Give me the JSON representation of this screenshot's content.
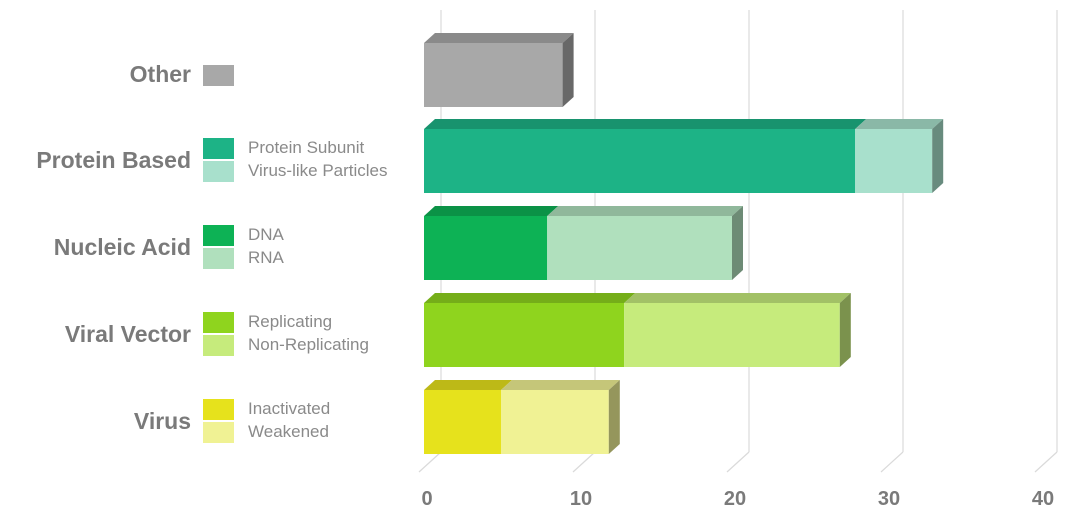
{
  "chart_data": {
    "type": "bar",
    "orientation": "horizontal",
    "stacked": true,
    "style": "3d",
    "categories": [
      "Other",
      "Protein Based",
      "Nucleic Acid",
      "Viral Vector",
      "Virus"
    ],
    "groups": [
      {
        "category": "Other",
        "segments": [
          {
            "name": "",
            "value": 9,
            "color": "#a8a8a8"
          }
        ]
      },
      {
        "category": "Protein Based",
        "segments": [
          {
            "name": "Protein Subunit",
            "value": 28,
            "color": "#1db386"
          },
          {
            "name": "Virus-like Particles",
            "value": 5,
            "color": "#a8e0cc"
          }
        ]
      },
      {
        "category": "Nucleic Acid",
        "segments": [
          {
            "name": "DNA",
            "value": 8,
            "color": "#0db255"
          },
          {
            "name": "RNA",
            "value": 12,
            "color": "#b0e0bd"
          }
        ]
      },
      {
        "category": "Viral Vector",
        "segments": [
          {
            "name": "Replicating",
            "value": 13,
            "color": "#8fd41e"
          },
          {
            "name": "Non-Replicating",
            "value": 14,
            "color": "#c6eb7c"
          }
        ]
      },
      {
        "category": "Virus",
        "segments": [
          {
            "name": "Inactivated",
            "value": 5,
            "color": "#e6e21c"
          },
          {
            "name": "Weakened",
            "value": 7,
            "color": "#f0f294"
          }
        ]
      }
    ],
    "xlim": [
      0,
      40
    ],
    "x_ticks": [
      "0",
      "10",
      "20",
      "30",
      "40"
    ],
    "grid": true,
    "title": "",
    "xlabel": "",
    "ylabel": ""
  }
}
